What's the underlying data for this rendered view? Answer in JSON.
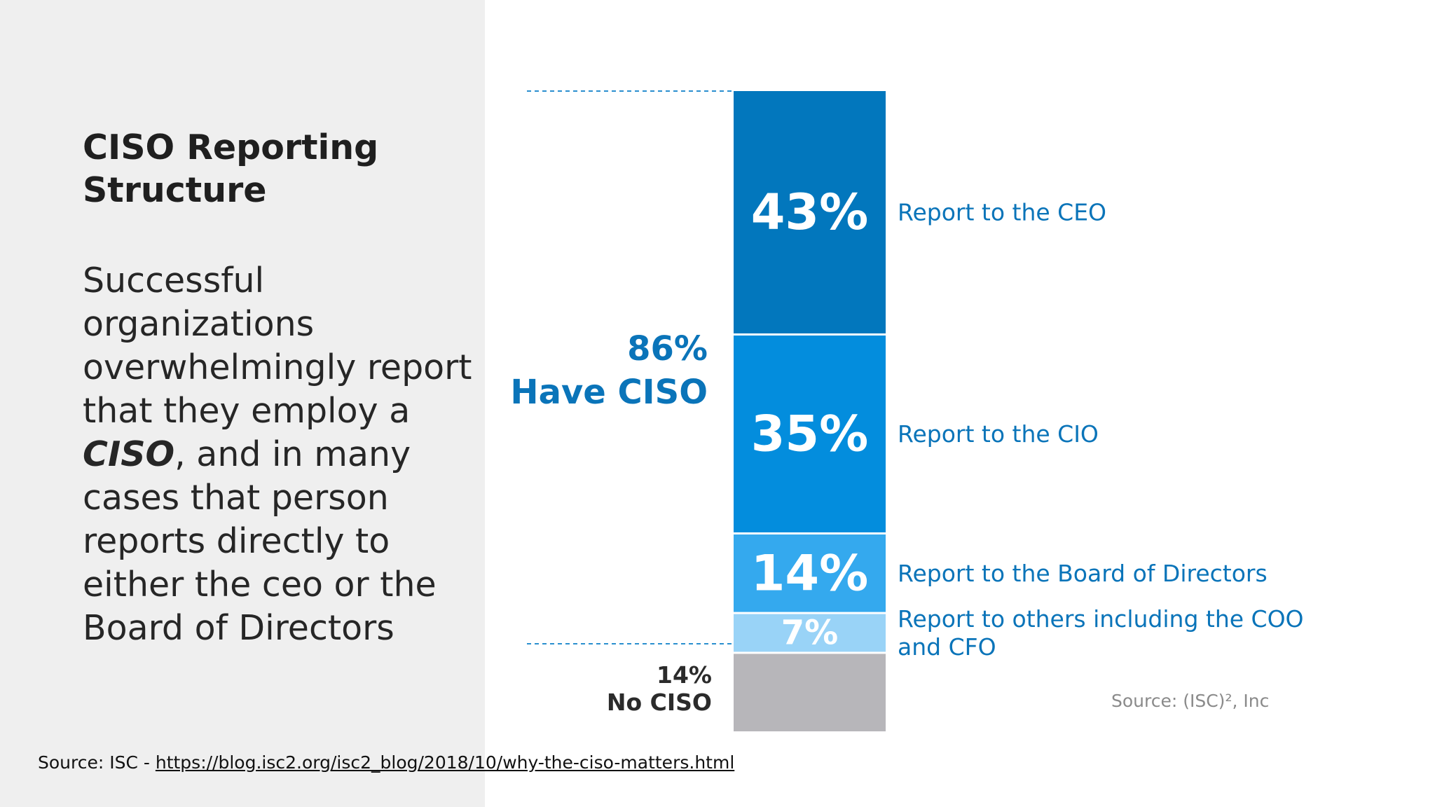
{
  "slide": {
    "title": "CISO Reporting Structure",
    "body_before": "Successful organizations overwhelmingly report that they employ a ",
    "body_emphasis": "CISO",
    "body_after": ", and in many cases that person reports directly to either the ceo or the Board of Directors",
    "source_prefix": "Source: ISC - ",
    "source_url": "https://blog.isc2.org/isc2_blog/2018/10/why-the-ciso-matters.html"
  },
  "chart_data": {
    "type": "bar",
    "stacked": true,
    "segments": [
      {
        "value": 43,
        "label": "43%",
        "desc": "Report to the CEO",
        "color": "#0277bd",
        "text_color": "#ffffff"
      },
      {
        "value": 35,
        "label": "35%",
        "desc": "Report to the CIO",
        "color": "#038ddd",
        "text_color": "#ffffff"
      },
      {
        "value": 14,
        "label": "14%",
        "desc": "Report to the Board of Directors",
        "color": "#34a9ee",
        "text_color": "#ffffff"
      },
      {
        "value": 7,
        "label": "7%",
        "desc": "Report to others including the COO and CFO",
        "color": "#99d3f7",
        "text_color": "#ffffff"
      },
      {
        "value": 14,
        "label": "",
        "desc": "",
        "color": "#b7b6ba",
        "text_color": "#ffffff"
      }
    ],
    "have_ciso_value": "86%",
    "have_ciso_text": "Have CISO",
    "no_ciso_value": "14%",
    "no_ciso_text": "No CISO",
    "source": "Source: (ISC)², Inc",
    "colors": {
      "label_blue": "#0a74b9",
      "dark_text": "#2b2b2b",
      "dash": "#2a8fcf"
    }
  }
}
